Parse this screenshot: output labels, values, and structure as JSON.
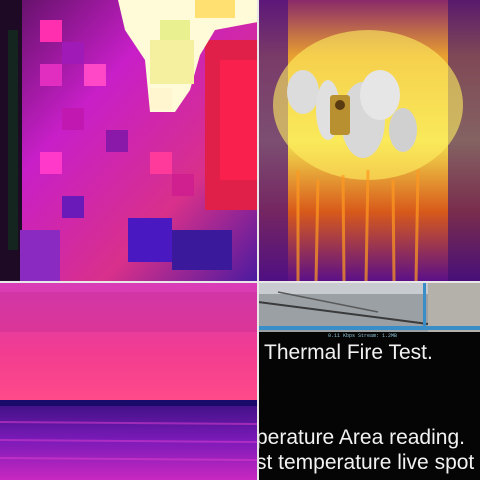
{
  "panels": {
    "top_left": {
      "icon": "thermal-closeup-icon"
    },
    "top_right": {
      "icon": "thermal-fire-device-icon"
    },
    "bottom_left": {
      "icon": "thermal-horizon-icon"
    },
    "bottom_right": {
      "icon": "video-screenshot-icon",
      "hud_text": "0.11 Kbps  Stream: 1.2MB",
      "caption_line1": "Thermal Fire Test.",
      "caption_line2": "perature Area reading.",
      "caption_line3": "st temperature live spot"
    }
  },
  "colors": {
    "magenta": "#c81fc8",
    "hot_pink": "#ff3a9a",
    "purple": "#5a0fb0",
    "yellow": "#ffe040",
    "orange": "#ff8a1a",
    "deep_blue": "#1a0a6a",
    "divider": "#e8e6e6",
    "screen_bg": "#050505",
    "ui_blue": "#3a8ec8"
  }
}
